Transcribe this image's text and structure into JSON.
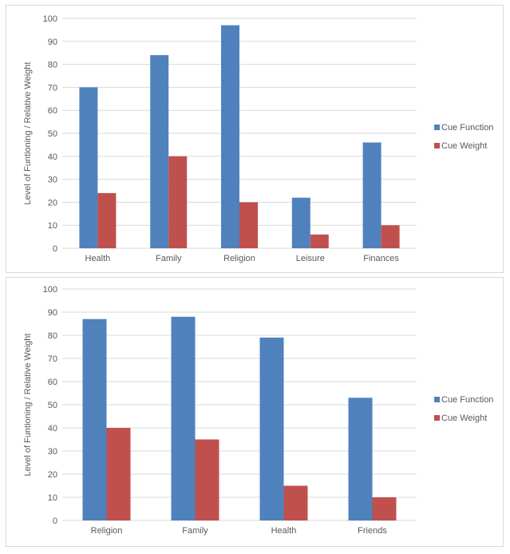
{
  "chart_data": [
    {
      "type": "bar",
      "title": "",
      "ylabel": "Level of Funtioning / Relative Weight",
      "xlabel": "",
      "ylim": [
        0,
        100
      ],
      "yticks": [
        0,
        10,
        20,
        30,
        40,
        50,
        60,
        70,
        80,
        90,
        100
      ],
      "categories": [
        "Health",
        "Family",
        "Religion",
        "Leisure",
        "Finances"
      ],
      "series": [
        {
          "name": "Cue Function",
          "color": "#4f81bd",
          "values": [
            70,
            84,
            97,
            22,
            46
          ]
        },
        {
          "name": "Cue Weight",
          "color": "#c0504d",
          "values": [
            24,
            40,
            20,
            6,
            10
          ]
        }
      ],
      "grid": true,
      "legend": "right"
    },
    {
      "type": "bar",
      "title": "",
      "ylabel": "Level of Funtioning / Relative Weight",
      "xlabel": "",
      "ylim": [
        0,
        100
      ],
      "yticks": [
        0,
        10,
        20,
        30,
        40,
        50,
        60,
        70,
        80,
        90,
        100
      ],
      "categories": [
        "Religion",
        "Family",
        "Health",
        "Friends"
      ],
      "series": [
        {
          "name": "Cue Function",
          "color": "#4f81bd",
          "values": [
            87,
            88,
            79,
            53
          ]
        },
        {
          "name": "Cue Weight",
          "color": "#c0504d",
          "values": [
            40,
            35,
            15,
            10
          ]
        }
      ],
      "grid": true,
      "legend": "right"
    }
  ]
}
